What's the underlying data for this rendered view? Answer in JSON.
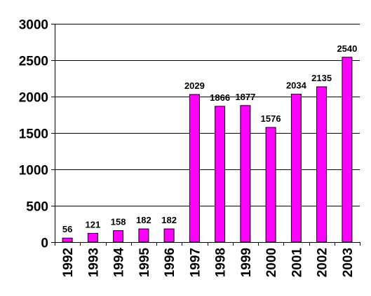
{
  "chart_data": {
    "type": "bar",
    "categories": [
      "1992",
      "1993",
      "1994",
      "1995",
      "1996",
      "1997",
      "1998",
      "1999",
      "2000",
      "2001",
      "2002",
      "2003"
    ],
    "values": [
      56,
      121,
      158,
      182,
      182,
      2029,
      1866,
      1877,
      1576,
      2034,
      2135,
      2540
    ],
    "data_labels": [
      "56",
      "121",
      "158",
      "182",
      "182",
      "2029",
      "1866",
      "1877",
      "1576",
      "2034",
      "2135",
      "2540"
    ],
    "y_ticks": [
      0,
      500,
      1000,
      1500,
      2000,
      2500,
      3000
    ],
    "y_tick_labels": [
      "0",
      "500",
      "1000",
      "1500",
      "2000",
      "2500",
      "3000"
    ],
    "ylim": [
      0,
      3000
    ],
    "grid": true,
    "legend": false,
    "bar_color": "#FF00FF",
    "title": "",
    "xlabel": "",
    "ylabel": ""
  }
}
